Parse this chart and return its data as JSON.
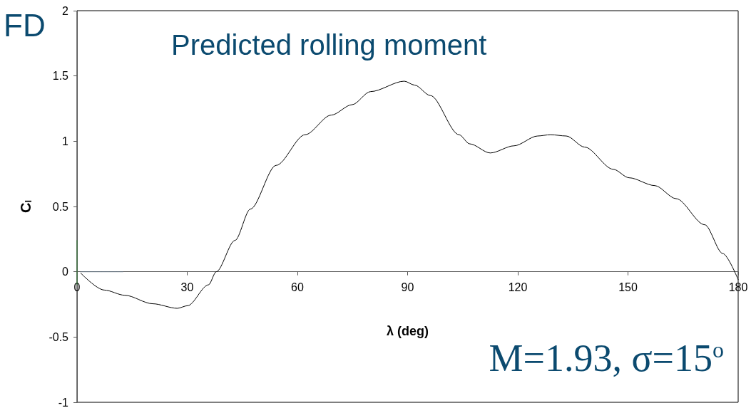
{
  "chart_data": {
    "type": "line",
    "title": "Predicted rolling moment",
    "xlabel": "λ (deg)",
    "ylabel": "C$_{l}$",
    "annotations": [
      "FD",
      "M=1.93, σ=15$^{o}$"
    ],
    "xlim": [
      0,
      180
    ],
    "xticks": [
      0,
      30,
      60,
      90,
      120,
      150,
      180
    ],
    "ylim": [
      -1,
      2
    ],
    "yticks": [
      -1,
      -0.5,
      0,
      0.5,
      1,
      1.5,
      2
    ],
    "marker": "none",
    "series": [
      {
        "color": "#000000",
        "x": [
          1,
          7.4,
          13,
          20.6,
          27.3,
          30.1,
          35.8,
          37.9,
          43,
          47.2,
          54.2,
          62.1,
          69.2,
          74.9,
          79.9,
          89.1,
          91.9,
          96.2,
          104,
          106.9,
          112.5,
          119,
          125.4,
          128.9,
          133.2,
          138.2,
          146,
          150.3,
          157.3,
          163.1,
          170.9,
          175.8,
          180
        ],
        "values": [
          -0.01,
          -0.14,
          -0.18,
          -0.245,
          -0.28,
          -0.26,
          -0.1,
          0,
          0.24,
          0.48,
          0.815,
          1.05,
          1.2,
          1.28,
          1.38,
          1.46,
          1.43,
          1.35,
          1.05,
          0.98,
          0.91,
          0.965,
          1.04,
          1.05,
          1.04,
          0.955,
          0.785,
          0.72,
          0.66,
          0.56,
          0.36,
          0.14,
          -0.06
        ]
      },
      {
        "color": "#5a6a7a",
        "x": [
          1,
          12.5
        ],
        "values": [
          0,
          0
        ]
      },
      {
        "color": "#2e7d32",
        "x": [
          0,
          0
        ],
        "values": [
          0.24,
          -0.1
        ]
      }
    ]
  }
}
